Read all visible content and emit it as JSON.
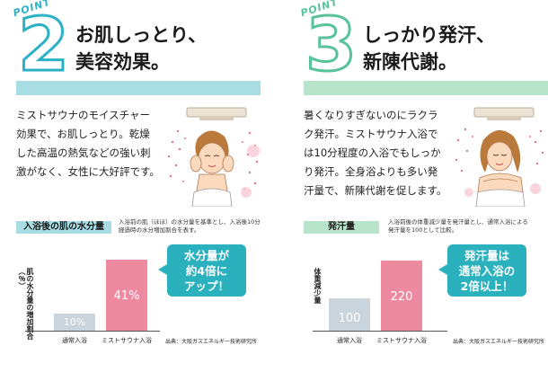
{
  "panels": [
    {
      "point_word": "POINT",
      "point_number": "2",
      "headline": "お肌しっとり、\n美容効果。",
      "body": "ミストサウナのモイスチャー効果で、お肌しっとり。乾燥した高温の熱気などの強い刺激がなく、女性に大好評です。",
      "sub_label": "入浴後の肌の水分量",
      "sub_note": "入浴前の肌（ほほ）の水分量を基準とし、入浴後10分経過時の水分増加割合を表す。",
      "y_label": "肌の水分量の増加割合（％）",
      "callout": "水分量が\n約4倍に\nアップ！",
      "source": "出典：大阪ガスエネルギー技術研究所",
      "colors": {
        "accent": "#2bb2c6",
        "band": "#a8dde4",
        "callout": "#2ab1bd"
      },
      "illustration": "woman-face-mist-illustration",
      "chart_data": {
        "type": "bar",
        "categories": [
          "通常入浴",
          "ミストサウナ入浴"
        ],
        "values": [
          10,
          41
        ],
        "value_labels": [
          "10%",
          "41%"
        ],
        "ylabel": "肌の水分量の増加割合（％）",
        "bar_colors": [
          "#c9d4dc",
          "#ee8aa0"
        ],
        "ylim": [
          0,
          50
        ]
      }
    },
    {
      "point_word": "POINT",
      "point_number": "3",
      "headline": "しっかり発汗、\n新陳代謝。",
      "body": "暑くなりすぎないのにラクラク発汗。ミストサウナ入浴では10分程度の入浴でもしっかり発汗。全身浴よりも多い発汗量で、新陳代謝を促します。",
      "sub_label": "発汗量",
      "sub_note": "入浴前後の体重減少量を発汗量とし、通常入浴による発汗量を100として比較。",
      "y_label": "体重減少量",
      "callout": "発汗量は\n通常入浴の\n2倍以上！",
      "source": "出典：大阪ガスエネルギー技術研究所",
      "colors": {
        "accent": "#58c29a",
        "band": "#b9e4cc",
        "callout": "#2ab1bd"
      },
      "illustration": "woman-shoulders-mist-illustration",
      "chart_data": {
        "type": "bar",
        "categories": [
          "通常入浴",
          "ミストサウナ入浴"
        ],
        "values": [
          100,
          220
        ],
        "value_labels": [
          "100",
          "220"
        ],
        "ylabel": "体重減少量",
        "bar_colors": [
          "#c9d4dc",
          "#ee8aa0"
        ],
        "ylim": [
          0,
          270
        ]
      }
    }
  ]
}
